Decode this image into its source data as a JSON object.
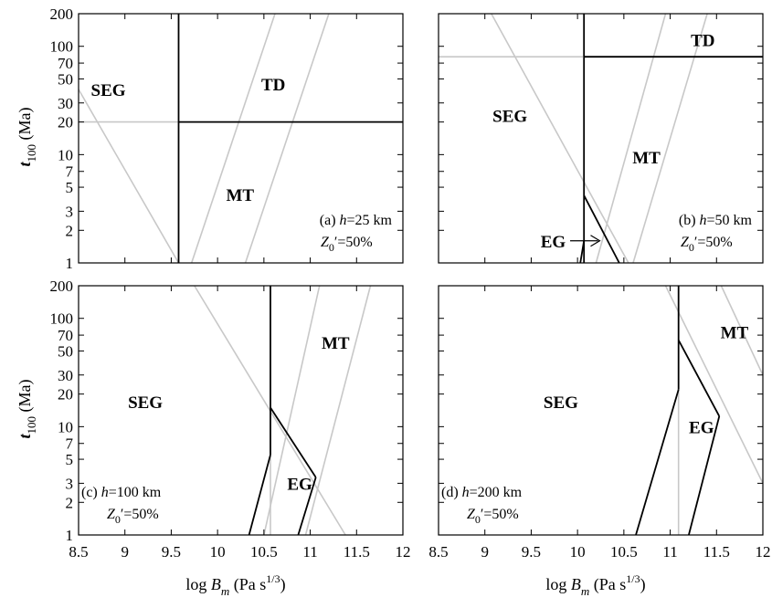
{
  "figure": {
    "ylabel_main": "t",
    "ylabel_sub": "100",
    "ylabel_units": "(Ma)",
    "xlabel_main": "log B",
    "xlabel_sub": "m",
    "xlabel_units_pre": "(Pa s",
    "xlabel_units_sup": "1/3",
    "xlabel_units_post": ")"
  },
  "chart_data": [
    {
      "type": "line",
      "panel": "a",
      "xlim": [
        8.5,
        12
      ],
      "ylim": [
        1,
        200
      ],
      "yscale": "log",
      "xticks": [
        "8.5",
        "9",
        "9.5",
        "10",
        "10.5",
        "11",
        "11.5",
        "12"
      ],
      "yticks": [
        1,
        2,
        3,
        5,
        7,
        10,
        20,
        30,
        50,
        70,
        100,
        200
      ],
      "annotation": {
        "label_pre": "(a) ",
        "label_var": "h",
        "label_post": "=25 km",
        "z_main": "Z",
        "z_sub": "0",
        "z_post": "′=50%"
      },
      "regions": [
        {
          "label": "SEG",
          "x": 8.85,
          "y": 40
        },
        {
          "label": "TD",
          "x": 10.6,
          "y": 45
        },
        {
          "label": "MT",
          "x": 10.25,
          "y": 4.3
        }
      ],
      "boundaries": [
        {
          "points": [
            [
              9.58,
              1
            ],
            [
              9.58,
              200
            ]
          ]
        },
        {
          "points": [
            [
              9.58,
              20
            ],
            [
              12,
              20
            ]
          ]
        }
      ],
      "guides": [
        {
          "points": [
            [
              8.5,
              40
            ],
            [
              9.58,
              1
            ]
          ]
        },
        {
          "points": [
            [
              8.5,
              20
            ],
            [
              9.58,
              20
            ]
          ]
        },
        {
          "points": [
            [
              9.72,
              1
            ],
            [
              10.62,
              200
            ]
          ]
        },
        {
          "points": [
            [
              10.3,
              1
            ],
            [
              11.2,
              200
            ]
          ]
        }
      ]
    },
    {
      "type": "line",
      "panel": "b",
      "xlim": [
        8.5,
        12
      ],
      "ylim": [
        1,
        200
      ],
      "yscale": "log",
      "xticks": [
        "8.5",
        "9",
        "9.5",
        "10",
        "10.5",
        "11",
        "11.5",
        "12"
      ],
      "yticks": [
        1,
        2,
        3,
        5,
        7,
        10,
        20,
        30,
        50,
        70,
        100,
        200
      ],
      "annotation": {
        "label_pre": "(b) ",
        "label_var": "h",
        "label_post": "=50 km",
        "z_main": "Z",
        "z_sub": "0",
        "z_post": "′=50%"
      },
      "regions": [
        {
          "label": "SEG",
          "x": 9.3,
          "y": 23
        },
        {
          "label": "TD",
          "x": 11.35,
          "y": 115
        },
        {
          "label": "MT",
          "x": 10.75,
          "y": 9.5
        },
        {
          "label": "EG",
          "x": 9.72,
          "y": 1.6
        }
      ],
      "boundaries": [
        {
          "points": [
            [
              10.07,
              1
            ],
            [
              10.07,
              80
            ]
          ]
        },
        {
          "points": [
            [
              10.07,
              200
            ],
            [
              10.07,
              80
            ]
          ]
        },
        {
          "points": [
            [
              10.07,
              80
            ],
            [
              12,
              80
            ]
          ]
        },
        {
          "points": [
            [
              10.03,
              1
            ],
            [
              10.07,
              1.6
            ]
          ]
        },
        {
          "points": [
            [
              10.07,
              4.2
            ],
            [
              10.45,
              1
            ]
          ]
        }
      ],
      "guides": [
        {
          "points": [
            [
              8.5,
              80
            ],
            [
              10.07,
              80
            ]
          ]
        },
        {
          "points": [
            [
              9.07,
              200
            ],
            [
              10.55,
              1
            ]
          ]
        },
        {
          "points": [
            [
              10.2,
              1
            ],
            [
              10.95,
              200
            ]
          ]
        },
        {
          "points": [
            [
              10.6,
              1
            ],
            [
              11.4,
              200
            ]
          ]
        }
      ],
      "arrow": {
        "from": [
          9.92,
          1.6
        ],
        "to": [
          10.24,
          1.6
        ]
      }
    },
    {
      "type": "line",
      "panel": "c",
      "xlim": [
        8.5,
        12
      ],
      "ylim": [
        1,
        200
      ],
      "yscale": "log",
      "xticks": [
        "8.5",
        "9",
        "9.5",
        "10",
        "10.5",
        "11",
        "11.5",
        "12"
      ],
      "yticks": [
        1,
        2,
        3,
        5,
        7,
        10,
        20,
        30,
        50,
        70,
        100,
        200
      ],
      "annotation": {
        "label_pre": "(c) ",
        "label_var": "h",
        "label_post": "=100 km",
        "z_main": "Z",
        "z_sub": "0",
        "z_post": "′=50%"
      },
      "regions": [
        {
          "label": "SEG",
          "x": 9.25,
          "y": 17
        },
        {
          "label": "MT",
          "x": 11.28,
          "y": 60
        },
        {
          "label": "EG",
          "x": 10.87,
          "y": 3
        }
      ],
      "boundaries": [
        {
          "points": [
            [
              10.57,
              200
            ],
            [
              10.57,
              5.5
            ]
          ]
        },
        {
          "points": [
            [
              10.57,
              5.5
            ],
            [
              10.34,
              1
            ]
          ]
        },
        {
          "points": [
            [
              10.57,
              15
            ],
            [
              11.06,
              3.4
            ]
          ]
        },
        {
          "points": [
            [
              11.06,
              3.4
            ],
            [
              10.87,
              1
            ]
          ]
        }
      ],
      "guides": [
        {
          "points": [
            [
              9.75,
              200
            ],
            [
              11.38,
              1
            ]
          ]
        },
        {
          "points": [
            [
              10.57,
              1
            ],
            [
              10.57,
              5.5
            ]
          ]
        },
        {
          "points": [
            [
              10.5,
              1
            ],
            [
              11.1,
              200
            ]
          ]
        },
        {
          "points": [
            [
              10.95,
              1
            ],
            [
              11.65,
              200
            ]
          ]
        }
      ]
    },
    {
      "type": "line",
      "panel": "d",
      "xlim": [
        8.5,
        12
      ],
      "ylim": [
        1,
        200
      ],
      "yscale": "log",
      "xticks": [
        "8.5",
        "9",
        "9.5",
        "10",
        "10.5",
        "11",
        "11.5",
        "12"
      ],
      "yticks": [
        1,
        2,
        3,
        5,
        7,
        10,
        20,
        30,
        50,
        70,
        100,
        200
      ],
      "annotation": {
        "label_pre": "(d) ",
        "label_var": "h",
        "label_post": "=200 km",
        "z_main": "Z",
        "z_sub": "0",
        "z_post": "′=50%"
      },
      "regions": [
        {
          "label": "SEG",
          "x": 9.85,
          "y": 17
        },
        {
          "label": "MT",
          "x": 11.7,
          "y": 75
        },
        {
          "label": "EG",
          "x": 11.32,
          "y": 10
        }
      ],
      "boundaries": [
        {
          "points": [
            [
              11.09,
              200
            ],
            [
              11.09,
              63
            ]
          ]
        },
        {
          "points": [
            [
              11.09,
              63
            ],
            [
              11.09,
              22
            ]
          ]
        },
        {
          "points": [
            [
              11.09,
              22
            ],
            [
              10.63,
              1
            ]
          ]
        },
        {
          "points": [
            [
              11.09,
              63
            ],
            [
              11.53,
              12.5
            ]
          ]
        },
        {
          "points": [
            [
              11.53,
              12.5
            ],
            [
              11.2,
              1
            ]
          ]
        }
      ],
      "guides": [
        {
          "points": [
            [
              10.95,
              200
            ],
            [
              12,
              3
            ]
          ]
        },
        {
          "points": [
            [
              11.09,
              1
            ],
            [
              11.09,
              22
            ]
          ]
        },
        {
          "points": [
            [
              11.55,
              200
            ],
            [
              12,
              30
            ]
          ]
        }
      ]
    }
  ]
}
